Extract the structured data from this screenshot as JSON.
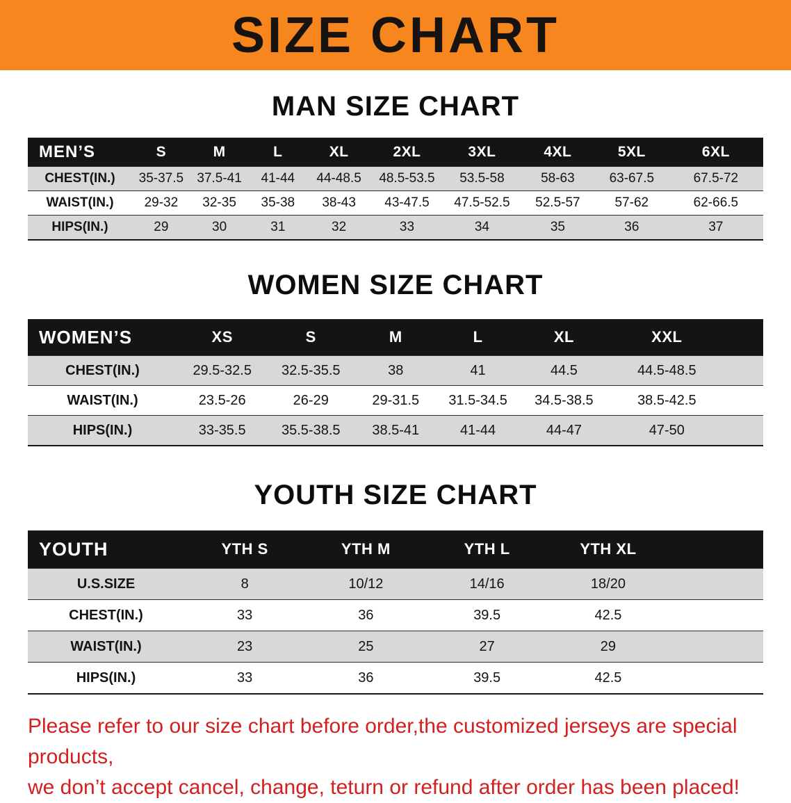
{
  "banner": {
    "title": "SIZE CHART"
  },
  "colors": {
    "banner_background": "#f6861d",
    "table_header_background": "#141414",
    "alt_row_background": "#d8d8d8",
    "notice_text": "#d12020"
  },
  "sections": [
    {
      "title": "MAN SIZE CHART",
      "header_label": "MEN’S",
      "columns": [
        "S",
        "M",
        "L",
        "XL",
        "2XL",
        "3XL",
        "4XL",
        "5XL",
        "6XL"
      ],
      "rows": [
        {
          "label": "CHEST(IN.)",
          "values": [
            "35-37.5",
            "37.5-41",
            "41-44",
            "44-48.5",
            "48.5-53.5",
            "53.5-58",
            "58-63",
            "63-67.5",
            "67.5-72"
          ]
        },
        {
          "label": "WAIST(IN.)",
          "values": [
            "29-32",
            "32-35",
            "35-38",
            "38-43",
            "43-47.5",
            "47.5-52.5",
            "52.5-57",
            "57-62",
            "62-66.5"
          ]
        },
        {
          "label": "HIPS(IN.)",
          "values": [
            "29",
            "30",
            "31",
            "32",
            "33",
            "34",
            "35",
            "36",
            "37"
          ]
        }
      ]
    },
    {
      "title": "WOMEN SIZE CHART",
      "header_label": "WOMEN’S",
      "columns": [
        "XS",
        "S",
        "M",
        "L",
        "XL",
        "XXL"
      ],
      "rows": [
        {
          "label": "CHEST(IN.)",
          "values": [
            "29.5-32.5",
            "32.5-35.5",
            "38",
            "41",
            "44.5",
            "44.5-48.5"
          ]
        },
        {
          "label": "WAIST(IN.)",
          "values": [
            "23.5-26",
            "26-29",
            "29-31.5",
            "31.5-34.5",
            "34.5-38.5",
            "38.5-42.5"
          ]
        },
        {
          "label": "HIPS(IN.)",
          "values": [
            "33-35.5",
            "35.5-38.5",
            "38.5-41",
            "41-44",
            "44-47",
            "47-50"
          ]
        }
      ]
    },
    {
      "title": "YOUTH SIZE CHART",
      "header_label": "YOUTH",
      "columns": [
        "YTH S",
        "YTH M",
        "YTH L",
        "YTH XL"
      ],
      "rows": [
        {
          "label": "U.S.SIZE",
          "values": [
            "8",
            "10/12",
            "14/16",
            "18/20"
          ]
        },
        {
          "label": "CHEST(IN.)",
          "values": [
            "33",
            "36",
            "39.5",
            "42.5"
          ]
        },
        {
          "label": "WAIST(IN.)",
          "values": [
            "23",
            "25",
            "27",
            "29"
          ]
        },
        {
          "label": "HIPS(IN.)",
          "values": [
            "33",
            "36",
            "39.5",
            "42.5"
          ]
        }
      ]
    }
  ],
  "footer": {
    "lines": [
      "Please refer to our size chart before order,the customized jerseys are special products,",
      "we don’t accept cancel, change, teturn or refund after order has been placed!"
    ]
  }
}
